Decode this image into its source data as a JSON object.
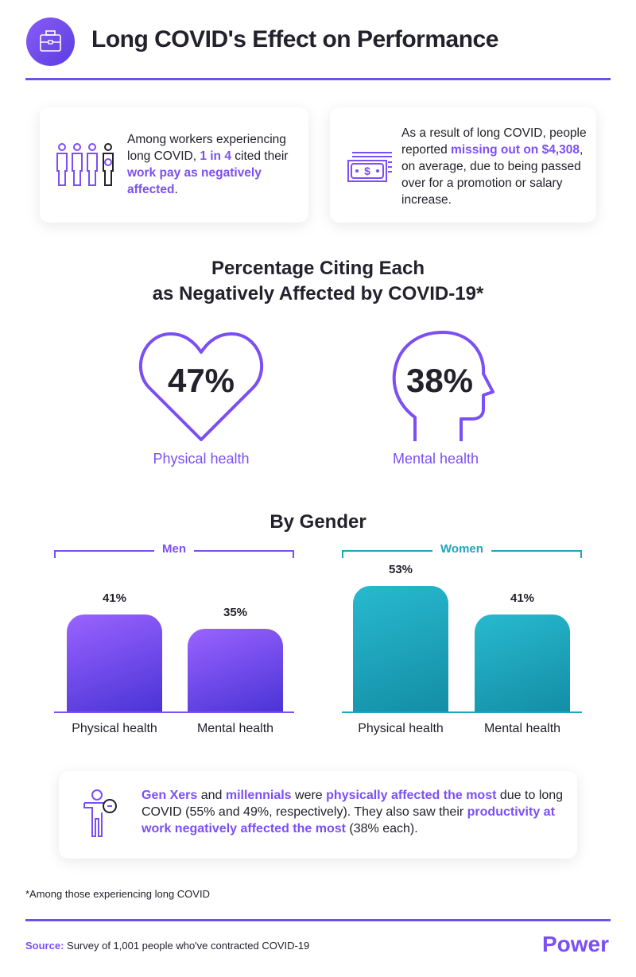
{
  "header": {
    "title": "Long COVID's Effect on Performance",
    "icon": "briefcase-icon"
  },
  "cards": {
    "pay": {
      "icon": "people-icon",
      "t1": "Among workers experiencing long COVID, ",
      "h1": "1 in 4",
      "t2": " cited their ",
      "h2": "work pay as negatively affected",
      "t3": "."
    },
    "money": {
      "icon": "money-bill-icon",
      "t1": "As a result of long COVID, people reported ",
      "h1": "missing out on $4,308",
      "t2": ", on average, due to being passed over for a promotion or salary increase."
    }
  },
  "overall": {
    "title1": "Percentage Citing Each",
    "title2": "as Negatively Affected by COVID-19*",
    "physical": {
      "value": "47%",
      "label": "Physical health",
      "icon": "heart-icon"
    },
    "mental": {
      "value": "38%",
      "label": "Mental health",
      "icon": "head-icon"
    }
  },
  "chart_data": {
    "type": "bar",
    "title": "By Gender",
    "categories": [
      "Physical health",
      "Mental health"
    ],
    "series": [
      {
        "name": "Men",
        "values": [
          41,
          35
        ],
        "color": "#7b4ff5"
      },
      {
        "name": "Women",
        "values": [
          53,
          41
        ],
        "color": "#1ea6bd"
      }
    ]
  },
  "note": {
    "icon": "person-pointing-icon",
    "h1": "Gen Xers",
    "t1": " and ",
    "h2": "millennials",
    "t2": " were ",
    "h3": "physically affected the most",
    "t3": " due to long COVID (55% and 49%, respectively). They also saw their ",
    "h4": "productivity at work negatively affected the most",
    "t4": " (38% each)."
  },
  "footnote": "*Among those experiencing long COVID",
  "source": {
    "label": "Source:",
    "text": " Survey of 1,001 people who've contracted COVID-19"
  },
  "logo": "Power",
  "colors": {
    "accent": "#7b4ff5",
    "teal": "#1ea6bd",
    "rule": "#6b50f0"
  }
}
